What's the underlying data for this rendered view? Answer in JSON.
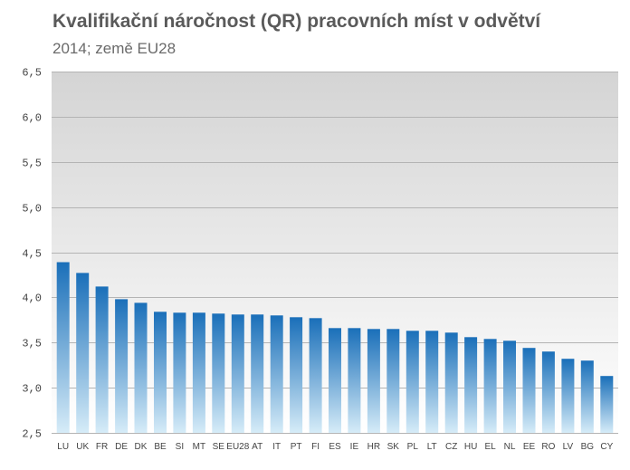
{
  "chart_data": {
    "type": "bar",
    "title": "Kvalifikační náročnost (QR)  pracovních míst v odvětví",
    "subtitle": "2014; země EU28",
    "xlabel": "",
    "ylabel": "",
    "ylim": [
      2.5,
      6.5
    ],
    "yticks": [
      "2,5",
      "3,0",
      "3,5",
      "4,0",
      "4,5",
      "5,0",
      "5,5",
      "6,0",
      "6,5"
    ],
    "ytick_values": [
      2.5,
      3.0,
      3.5,
      4.0,
      4.5,
      5.0,
      5.5,
      6.0,
      6.5
    ],
    "grid": true,
    "legend": "none",
    "categories": [
      "LU",
      "UK",
      "FR",
      "DE",
      "DK",
      "BE",
      "SI",
      "MT",
      "SE",
      "EU28",
      "AT",
      "IT",
      "PT",
      "FI",
      "ES",
      "IE",
      "HR",
      "SK",
      "PL",
      "LT",
      "CZ",
      "HU",
      "EL",
      "NL",
      "EE",
      "RO",
      "LV",
      "BG",
      "CY"
    ],
    "values": [
      4.39,
      4.27,
      4.12,
      3.98,
      3.94,
      3.84,
      3.83,
      3.83,
      3.82,
      3.81,
      3.81,
      3.8,
      3.78,
      3.77,
      3.66,
      3.66,
      3.65,
      3.65,
      3.63,
      3.63,
      3.61,
      3.56,
      3.54,
      3.52,
      3.44,
      3.4,
      3.32,
      3.3,
      3.13
    ],
    "colors": {
      "bar_top": "#1a6fb9",
      "bar_bottom": "#d6ecf8",
      "plot_top": "#d4d4d4",
      "plot_bottom": "#ffffff",
      "grid": "#b4b4b4",
      "text": "#5a5a5a"
    }
  }
}
